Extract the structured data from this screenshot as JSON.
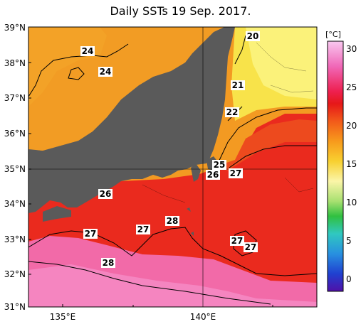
{
  "title": "Daily SSTs 19 Sep. 2017.",
  "lat_labels": [
    "39°N",
    "38°N",
    "37°N",
    "36°N",
    "35°N",
    "34°N",
    "33°N",
    "32°N",
    "31°N"
  ],
  "lon_labels": [
    "135°E",
    "140°E"
  ],
  "colorbar": {
    "unit": "[°C]",
    "ticks": [
      "30",
      "25",
      "20",
      "15",
      "10",
      "5",
      "0"
    ],
    "colors": [
      "#f9c0ee",
      "#f57fc0",
      "#f0305a",
      "#e81818",
      "#f23a1a",
      "#f6741a",
      "#f7a21c",
      "#f7c520",
      "#f9e83a",
      "#fbf8a0",
      "#e0f4a0",
      "#98e070",
      "#40c040",
      "#30c080",
      "#30c8c8",
      "#3090e0",
      "#2050d8",
      "#3020c0",
      "#5010a8"
    ]
  },
  "contour_labels": [
    "20",
    "24",
    "24",
    "21",
    "22",
    "25",
    "26",
    "27",
    "26",
    "27",
    "28",
    "27",
    "27",
    "27",
    "28"
  ]
}
